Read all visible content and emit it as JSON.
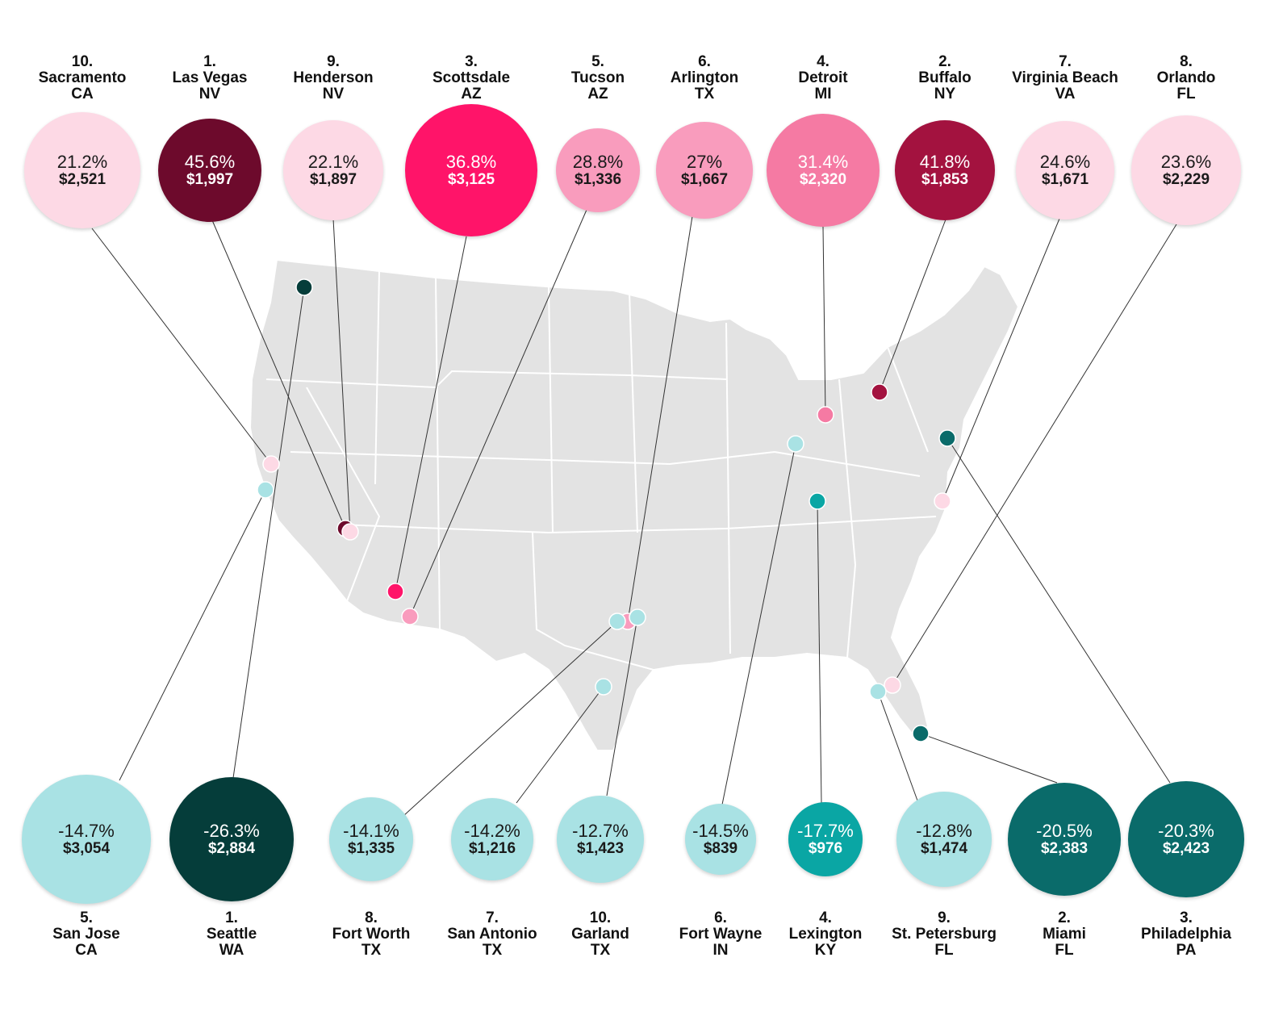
{
  "colors": {
    "map_land": "#e3e3e3",
    "map_border": "#ffffff",
    "connector": "#333333"
  },
  "top_cities": [
    {
      "rank": "10.",
      "city": "Sacramento",
      "state": "CA",
      "pct": "21.2%",
      "price": "$2,521",
      "color": "#fdd9e5",
      "text": "dark",
      "marker_color": "#fdd9e5"
    },
    {
      "rank": "1.",
      "city": "Las Vegas",
      "state": "NV",
      "pct": "45.6%",
      "price": "$1,997",
      "color": "#6d0a2c",
      "text": "light",
      "marker_color": "#6d0a2c"
    },
    {
      "rank": "9.",
      "city": "Henderson",
      "state": "NV",
      "pct": "22.1%",
      "price": "$1,897",
      "color": "#fdd9e5",
      "text": "dark",
      "marker_color": "#fdd9e5"
    },
    {
      "rank": "3.",
      "city": "Scottsdale",
      "state": "AZ",
      "pct": "36.8%",
      "price": "$3,125",
      "color": "#ff1469",
      "text": "light",
      "marker_color": "#ff1469"
    },
    {
      "rank": "5.",
      "city": "Tucson",
      "state": "AZ",
      "pct": "28.8%",
      "price": "$1,336",
      "color": "#f99cbd",
      "text": "dark",
      "marker_color": "#f99cbd"
    },
    {
      "rank": "6.",
      "city": "Arlington",
      "state": "TX",
      "pct": "27%",
      "price": "$1,667",
      "color": "#f99cbd",
      "text": "dark",
      "marker_color": "#f99cbd"
    },
    {
      "rank": "4.",
      "city": "Detroit",
      "state": "MI",
      "pct": "31.4%",
      "price": "$2,320",
      "color": "#f57aa3",
      "text": "light",
      "marker_color": "#f57aa3"
    },
    {
      "rank": "2.",
      "city": "Buffalo",
      "state": "NY",
      "pct": "41.8%",
      "price": "$1,853",
      "color": "#a3123f",
      "text": "light",
      "marker_color": "#a3123f"
    },
    {
      "rank": "7.",
      "city": "Virginia Beach",
      "state": "VA",
      "pct": "24.6%",
      "price": "$1,671",
      "color": "#fdd9e5",
      "text": "dark",
      "marker_color": "#fdd9e5"
    },
    {
      "rank": "8.",
      "city": "Orlando",
      "state": "FL",
      "pct": "23.6%",
      "price": "$2,229",
      "color": "#fdd9e5",
      "text": "dark",
      "marker_color": "#fdd9e5"
    }
  ],
  "bottom_cities": [
    {
      "rank": "5.",
      "city": "San Jose",
      "state": "CA",
      "pct": "-14.7%",
      "price": "$3,054",
      "color": "#a9e2e4",
      "text": "dark",
      "marker_color": "#a9e2e4"
    },
    {
      "rank": "1.",
      "city": "Seattle",
      "state": "WA",
      "pct": "-26.3%",
      "price": "$2,884",
      "color": "#053d3a",
      "text": "light",
      "marker_color": "#053d3a"
    },
    {
      "rank": "8.",
      "city": "Fort Worth",
      "state": "TX",
      "pct": "-14.1%",
      "price": "$1,335",
      "color": "#a9e2e4",
      "text": "dark",
      "marker_color": "#a9e2e4"
    },
    {
      "rank": "7.",
      "city": "San Antonio",
      "state": "TX",
      "pct": "-14.2%",
      "price": "$1,216",
      "color": "#a9e2e4",
      "text": "dark",
      "marker_color": "#a9e2e4"
    },
    {
      "rank": "10.",
      "city": "Garland",
      "state": "TX",
      "pct": "-12.7%",
      "price": "$1,423",
      "color": "#a9e2e4",
      "text": "dark",
      "marker_color": "#a9e2e4"
    },
    {
      "rank": "6.",
      "city": "Fort Wayne",
      "state": "IN",
      "pct": "-14.5%",
      "price": "$839",
      "color": "#a9e2e4",
      "text": "dark",
      "marker_color": "#a9e2e4"
    },
    {
      "rank": "4.",
      "city": "Lexington",
      "state": "KY",
      "pct": "-17.7%",
      "price": "$976",
      "color": "#0aa6a4",
      "text": "light",
      "marker_color": "#0aa6a4"
    },
    {
      "rank": "9.",
      "city": "St. Petersburg",
      "state": "FL",
      "pct": "-12.8%",
      "price": "$1,474",
      "color": "#a9e2e4",
      "text": "dark",
      "marker_color": "#a9e2e4"
    },
    {
      "rank": "2.",
      "city": "Miami",
      "state": "FL",
      "pct": "-20.5%",
      "price": "$2,383",
      "color": "#0a6b6a",
      "text": "light",
      "marker_color": "#0a6b6a"
    },
    {
      "rank": "3.",
      "city": "Philadelphia",
      "state": "PA",
      "pct": "-20.3%",
      "price": "$2,423",
      "color": "#0a6b6a",
      "text": "light",
      "marker_color": "#0a6b6a"
    }
  ]
}
